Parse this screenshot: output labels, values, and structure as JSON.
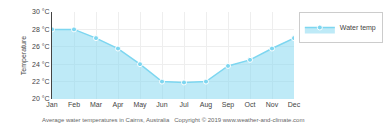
{
  "chart_data": {
    "type": "area",
    "categories": [
      "Jan",
      "Feb",
      "Mar",
      "Apr",
      "May",
      "Jun",
      "Jul",
      "Aug",
      "Sep",
      "Oct",
      "Nov",
      "Dec"
    ],
    "series": [
      {
        "name": "Water temp",
        "color": "#7dd6f0",
        "marker": "circle",
        "values": [
          28.0,
          28.0,
          27.0,
          25.8,
          24.0,
          22.0,
          21.9,
          22.0,
          23.8,
          24.5,
          25.8,
          27.0
        ]
      }
    ],
    "ylabel": "Temperature",
    "ylim": [
      20,
      30
    ],
    "yticks": [
      {
        "value": 20,
        "label": "20 °C"
      },
      {
        "value": 22,
        "label": "22 °C"
      },
      {
        "value": 24,
        "label": "24 °C"
      },
      {
        "value": 26,
        "label": "26 °C"
      },
      {
        "value": 28,
        "label": "28 °C"
      },
      {
        "value": 30,
        "label": "30 °C"
      }
    ],
    "grid": true,
    "legend": "upper right",
    "annotations": [
      "Average water temperatures in Cairns, Australia   Copyright © 2019 www.weather-and-climate.com"
    ]
  }
}
